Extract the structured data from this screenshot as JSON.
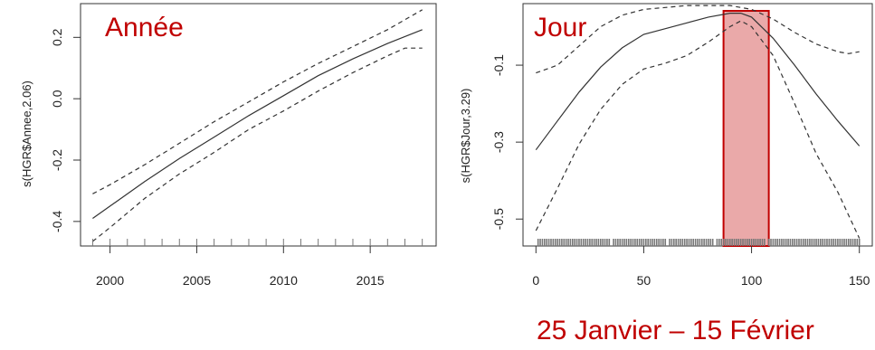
{
  "caption": "25 Janvier – 15 Février",
  "colors": {
    "highlight_text": "#c00000",
    "highlight_fill": "#e8a0a0",
    "highlight_stroke": "#c00000",
    "line": "#333333",
    "rug": "#777777"
  },
  "chart_data": [
    {
      "type": "line",
      "title": "Année",
      "ylabel": "s(HGR$Annee,2.06)",
      "xlabel": "",
      "xlim": [
        1998.3,
        2018.8
      ],
      "ylim": [
        -0.48,
        0.31
      ],
      "x_ticks": [
        "2000",
        "2005",
        "2010",
        "2015"
      ],
      "y_ticks": [
        "-0.4",
        "-0.2",
        "0.0",
        "0.2"
      ],
      "grid": false,
      "series": [
        {
          "style": "solid",
          "x": [
            1999,
            2000,
            2002,
            2004,
            2006,
            2008,
            2010,
            2012,
            2014,
            2016,
            2018
          ],
          "y": [
            -0.39,
            -0.35,
            -0.27,
            -0.195,
            -0.125,
            -0.055,
            0.01,
            0.075,
            0.13,
            0.18,
            0.225
          ]
        },
        {
          "style": "dashed",
          "x": [
            1999,
            2000,
            2002,
            2004,
            2006,
            2008,
            2010,
            2012,
            2014,
            2016,
            2018
          ],
          "y": [
            -0.31,
            -0.28,
            -0.215,
            -0.145,
            -0.075,
            -0.01,
            0.055,
            0.115,
            0.17,
            0.225,
            0.29
          ]
        },
        {
          "style": "dashed",
          "x": [
            1999,
            2000,
            2002,
            2004,
            2006,
            2008,
            2010,
            2012,
            2014,
            2016,
            2017,
            2018
          ],
          "y": [
            -0.465,
            -0.42,
            -0.325,
            -0.245,
            -0.175,
            -0.1,
            -0.04,
            0.025,
            0.085,
            0.14,
            0.165,
            0.165
          ]
        }
      ],
      "rug_x": [
        1999,
        2000,
        2001,
        2002,
        2003,
        2004,
        2005,
        2006,
        2007,
        2008,
        2009,
        2010,
        2011,
        2012,
        2013,
        2014,
        2015,
        2016,
        2017,
        2018
      ]
    },
    {
      "type": "line",
      "title": "Jour",
      "ylabel": "s(HGR$Jour,3.29)",
      "xlabel": "",
      "xlim": [
        -6,
        156
      ],
      "ylim": [
        -0.57,
        0.06
      ],
      "x_ticks": [
        "0",
        "50",
        "100",
        "150"
      ],
      "y_ticks": [
        "-0.1",
        "-0.3",
        "-0.5"
      ],
      "grid": false,
      "highlight": {
        "x_start": 87,
        "x_end": 108
      },
      "series": [
        {
          "style": "solid",
          "x": [
            0,
            10,
            20,
            30,
            40,
            50,
            60,
            70,
            80,
            90,
            95,
            100,
            110,
            120,
            130,
            140,
            150
          ],
          "y": [
            -0.32,
            -0.245,
            -0.17,
            -0.105,
            -0.055,
            -0.02,
            -0.005,
            0.01,
            0.025,
            0.035,
            0.035,
            0.025,
            -0.03,
            -0.1,
            -0.175,
            -0.245,
            -0.31
          ]
        },
        {
          "style": "dashed",
          "x": [
            0,
            10,
            20,
            30,
            40,
            50,
            60,
            70,
            80,
            90,
            100,
            110,
            120,
            130,
            140,
            145,
            150
          ],
          "y": [
            -0.12,
            -0.1,
            -0.05,
            0.0,
            0.03,
            0.045,
            0.05,
            0.055,
            0.055,
            0.055,
            0.045,
            0.02,
            -0.015,
            -0.045,
            -0.065,
            -0.07,
            -0.065
          ]
        },
        {
          "style": "dashed",
          "x": [
            0,
            10,
            20,
            30,
            40,
            50,
            60,
            70,
            80,
            90,
            95,
            100,
            110,
            120,
            130,
            140,
            150
          ],
          "y": [
            -0.53,
            -0.42,
            -0.305,
            -0.215,
            -0.15,
            -0.11,
            -0.095,
            -0.075,
            -0.04,
            0.0,
            0.015,
            0.0,
            -0.075,
            -0.2,
            -0.33,
            -0.43,
            -0.55
          ]
        }
      ],
      "rug_x": [
        1,
        2,
        3,
        4,
        5,
        6,
        7,
        8,
        9,
        10,
        11,
        12,
        13,
        14,
        15,
        16,
        17,
        18,
        19,
        20,
        21,
        22,
        23,
        24,
        25,
        26,
        27,
        28,
        29,
        30,
        31,
        32,
        33,
        34,
        36,
        37,
        38,
        39,
        40,
        41,
        42,
        43,
        44,
        45,
        46,
        47,
        48,
        49,
        50,
        51,
        52,
        53,
        54,
        55,
        56,
        57,
        58,
        59,
        60,
        62,
        63,
        64,
        65,
        66,
        67,
        68,
        69,
        70,
        71,
        72,
        73,
        74,
        75,
        76,
        77,
        78,
        79,
        80,
        81,
        82,
        84,
        85,
        86,
        87,
        88,
        89,
        90,
        91,
        92,
        93,
        94,
        95,
        96,
        97,
        98,
        99,
        100,
        101,
        102,
        103,
        104,
        105,
        106,
        108,
        109,
        110,
        111,
        112,
        113,
        114,
        115,
        116,
        117,
        118,
        119,
        120,
        121,
        122,
        123,
        124,
        125,
        126,
        127,
        128,
        129,
        130,
        131,
        132,
        133,
        134,
        135,
        136,
        137,
        138,
        139,
        140,
        141,
        142,
        143,
        144,
        145,
        146,
        147,
        148,
        149,
        150
      ]
    }
  ]
}
